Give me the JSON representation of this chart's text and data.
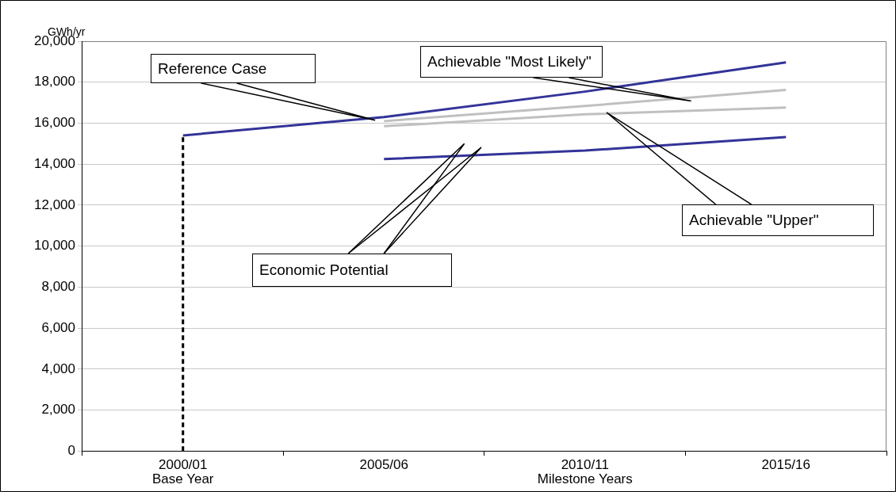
{
  "chart_data": {
    "type": "line",
    "ylabel": "GWh/yr",
    "categories": [
      "2000/01\nBase Year",
      "2005/06",
      "2010/11\nMilestone Years",
      "2015/16"
    ],
    "series": [
      {
        "color": "#333399",
        "values": [
          15400,
          16300,
          17540,
          18970
        ]
      },
      {
        "color": "#c0c0c0",
        "values": [
          null,
          16100,
          16840,
          17620
        ]
      },
      {
        "color": "#c0c0c0",
        "values": [
          null,
          15850,
          16430,
          16760
        ]
      },
      {
        "color": "#333399",
        "values": [
          null,
          14250,
          14660,
          15320
        ]
      },
      {
        "color": "#000000",
        "line_style": "dashed",
        "x": [
          "2000/01\nBase Year",
          "2000/01\nBase Year"
        ],
        "values": [
          0,
          15400
        ]
      }
    ],
    "annotations": [
      "Reference Case",
      "Achievable \"Most Likely\"",
      "Economic Potential",
      "Achievable \"Upper\""
    ],
    "ylim": [
      0,
      20000
    ],
    "yticks": [
      0,
      {
        "value": 2000,
        "label": "2,000"
      },
      {
        "value": 4000,
        "label": "4,000"
      },
      {
        "value": 6000,
        "label": "6,000"
      },
      {
        "value": 8000,
        "label": "8,000"
      },
      {
        "value": 10000,
        "label": "10,000"
      },
      {
        "value": 12000,
        "label": "12,000"
      },
      {
        "value": 14000,
        "label": "14,000"
      },
      {
        "value": 16000,
        "label": "16,000"
      },
      {
        "value": 18000,
        "label": "18,000"
      },
      {
        "value": 20000,
        "label": "20,000"
      }
    ],
    "grid": "y",
    "legend": false,
    "marker": "none",
    "line_style": "solid"
  }
}
